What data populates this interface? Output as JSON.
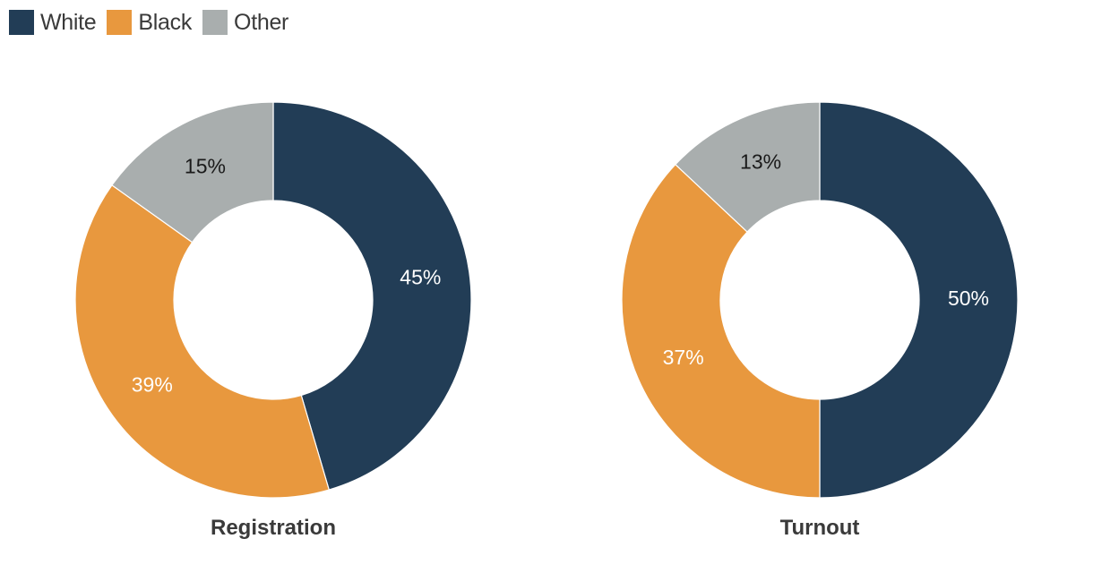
{
  "colors": {
    "White": "#223d56",
    "Black": "#e8983e",
    "Other": "#a9aeae"
  },
  "label_colors": {
    "White": "#ffffff",
    "Black": "#ffffff",
    "Other": "#1a1a1a"
  },
  "legend": {
    "items": [
      {
        "name": "White"
      },
      {
        "name": "Black"
      },
      {
        "name": "Other"
      }
    ]
  },
  "chart_data": [
    {
      "type": "pie",
      "title": "Registration",
      "categories": [
        "White",
        "Black",
        "Other"
      ],
      "values": [
        45,
        39,
        15
      ],
      "labels": [
        "45%",
        "39%",
        "15%"
      ]
    },
    {
      "type": "pie",
      "title": "Turnout",
      "categories": [
        "White",
        "Black",
        "Other"
      ],
      "values": [
        50,
        37,
        13
      ],
      "labels": [
        "50%",
        "37%",
        "13%"
      ]
    }
  ]
}
